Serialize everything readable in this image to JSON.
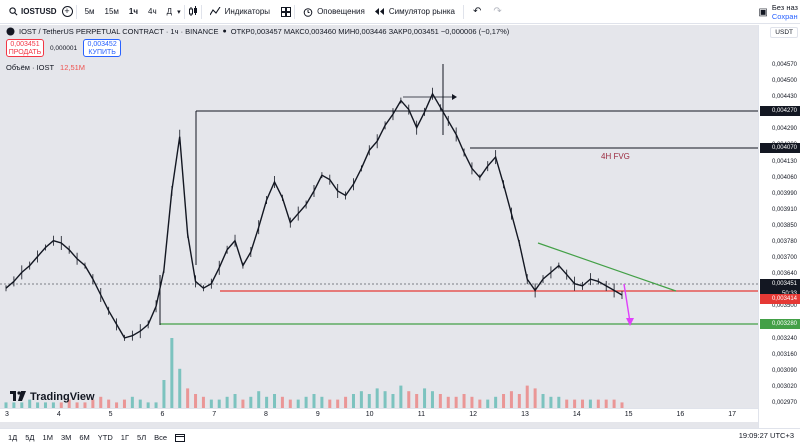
{
  "toolbar": {
    "symbol": "IOSTUSD",
    "timeframes": [
      "5м",
      "15м",
      "1ч",
      "4ч",
      "Д"
    ],
    "active_timeframe": "1ч",
    "indicators_label": "Индикаторы",
    "alerts_label": "Оповещения",
    "replay_label": "Симулятор рынка",
    "save_label": "Без наз",
    "save_sub": "Сохран"
  },
  "legend": {
    "title": "IOST / TetherUS PERPETUAL CONTRACT · 1ч · BINANCE",
    "ohlc": "ОТКР0,003457  МАКС0,003460  МИН0,003446  ЗАКР0,003451  −0,000006 (−0,17%)",
    "sell_price": "0,003451",
    "sell_label": "ПРОДАТЬ",
    "spread": "0,000001",
    "buy_price": "0,003452",
    "buy_label": "КУПИТЬ",
    "volume_label": "Объём · IOST",
    "volume_value": "12,51M"
  },
  "annotations": {
    "fvg": "4H FVG"
  },
  "price_scale": {
    "currency": "USDT",
    "labels": [
      "0,004570",
      "0,004500",
      "0,004430",
      "0,004350",
      "0,004290",
      "0,004200",
      "0,004130",
      "0,004060",
      "0,003990",
      "0,003910",
      "0,003850",
      "0,003780",
      "0,003700",
      "0,003640",
      "0,003570",
      "0,003500",
      "0,003320",
      "0,003240",
      "0,003160",
      "0,003090",
      "0,003020",
      "0,002970"
    ],
    "tags": {
      "level_upper": "0,004270",
      "level_fvg": "0,004070",
      "current": "0,003451",
      "countdown": "50:33",
      "level_red": "0,003414",
      "level_green": "0,003280"
    }
  },
  "time_scale": {
    "labels": [
      "3",
      "4",
      "5",
      "6",
      "7",
      "8",
      "9",
      "10",
      "11",
      "12",
      "13",
      "14",
      "15",
      "16",
      "17"
    ]
  },
  "bottom_bar": {
    "ranges": [
      "1Д",
      "5Д",
      "1М",
      "3М",
      "6М",
      "YTD",
      "1Г",
      "5Л",
      "Все"
    ],
    "clock": "19:09:27 UTC+3"
  },
  "brand": {
    "name": "TradingView"
  },
  "colors": {
    "chart_bg": "#e5e6eb",
    "red_level": "#e53935",
    "green_level": "#43a047",
    "arrow": "#e040fb",
    "candle": "#131722",
    "volume_up": "#26a69a",
    "volume_down": "#ef5350"
  },
  "chart_data": {
    "type": "line",
    "series": [
      {
        "values": [
          0.00348,
          0.00351,
          0.00355,
          0.00358,
          0.00362,
          0.00366,
          0.00369,
          0.00368,
          0.00365,
          0.00361,
          0.00358,
          0.00352,
          0.00345,
          0.00338,
          0.00332,
          0.00326,
          0.00327,
          0.00329,
          0.00332,
          0.0034,
          0.00356,
          0.00391,
          0.00415,
          0.00372,
          0.00351,
          0.00348,
          0.0035,
          0.00357,
          0.00365,
          0.00369,
          0.00358,
          0.00364,
          0.00375,
          0.00387,
          0.00395,
          0.00388,
          0.00377,
          0.00381,
          0.00385,
          0.00391,
          0.00398,
          0.00396,
          0.00391,
          0.00389,
          0.00394,
          0.00401,
          0.00409,
          0.00413,
          0.0042,
          0.00425,
          0.00431,
          0.00427,
          0.00419,
          0.00426,
          0.00434,
          0.00428,
          0.00422,
          0.00416,
          0.00408,
          0.00401,
          0.00397,
          0.00402,
          0.00406,
          0.00394,
          0.00381,
          0.00368,
          0.00352,
          0.00347,
          0.00352,
          0.00355,
          0.00358,
          0.00354,
          0.0035,
          0.00349,
          0.00352,
          0.00351,
          0.00349,
          0.00347,
          0.00345
        ]
      }
    ],
    "volumes": [
      2,
      2,
      2,
      3,
      2,
      2,
      2,
      2,
      3,
      2,
      2,
      3,
      4,
      3,
      2,
      3,
      4,
      3,
      2,
      2,
      10,
      25,
      14,
      7,
      5,
      4,
      3,
      3,
      4,
      5,
      3,
      4,
      6,
      4,
      5,
      4,
      3,
      3,
      4,
      5,
      4,
      3,
      3,
      4,
      5,
      6,
      5,
      7,
      6,
      5,
      8,
      6,
      5,
      7,
      6,
      5,
      4,
      4,
      5,
      4,
      3,
      3,
      4,
      5,
      6,
      5,
      8,
      7,
      5,
      4,
      4,
      3,
      3,
      3,
      3,
      3,
      3,
      3,
      2
    ],
    "xlabel": "",
    "ylabel": "",
    "ylim": [
      0.00295,
      0.0046
    ],
    "grid": false
  }
}
